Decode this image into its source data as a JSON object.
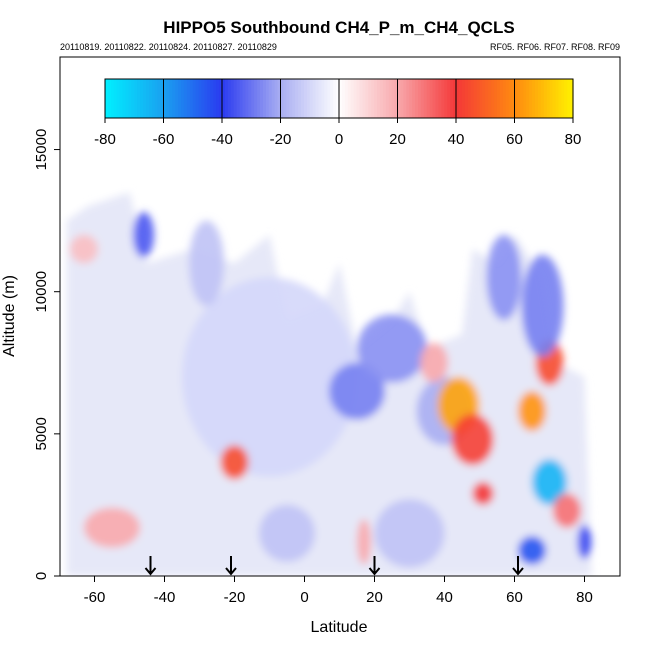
{
  "chart_data": {
    "type": "heatmap",
    "title": "HIPPO5 Southbound CH4_P_m_CH4_QCLS",
    "subtitle_left": "20110819. 20110822. 20110824. 20110827. 20110829",
    "subtitle_right": "RF05. RF06. RF07. RF08. RF09",
    "xlabel": "Latitude",
    "ylabel": "Altitude (m)",
    "xlim": [
      -70,
      90
    ],
    "ylim": [
      0,
      17500
    ],
    "x_ticks": [
      -60,
      -40,
      -20,
      0,
      20,
      40,
      60,
      80
    ],
    "y_ticks": [
      0,
      5000,
      10000,
      15000
    ],
    "colorbar": {
      "range": [
        -80,
        80
      ],
      "ticks": [
        -80,
        -60,
        -40,
        -20,
        0,
        20,
        40,
        60,
        80
      ],
      "stops": [
        {
          "value": -80,
          "color": "#00f0ff"
        },
        {
          "value": -60,
          "color": "#1aa0f0"
        },
        {
          "value": -40,
          "color": "#2a3af0"
        },
        {
          "value": -20,
          "color": "#a9aef2"
        },
        {
          "value": 0,
          "color": "#ffffff"
        },
        {
          "value": 20,
          "color": "#f8a8ac"
        },
        {
          "value": 40,
          "color": "#f43838"
        },
        {
          "value": 60,
          "color": "#ff8a10"
        },
        {
          "value": 80,
          "color": "#fff200"
        }
      ]
    },
    "flight_markers_latitude": [
      -44,
      -21,
      20,
      61
    ],
    "features": [
      {
        "lat": -10,
        "alt": 7000,
        "value": -10,
        "dlat": 25,
        "dalt": 3500
      },
      {
        "lat": -20,
        "alt": 4000,
        "value": 45,
        "dlat": 4,
        "dalt": 600
      },
      {
        "lat": -55,
        "alt": 1700,
        "value": 20,
        "dlat": 8,
        "dalt": 700
      },
      {
        "lat": -63,
        "alt": 11500,
        "value": 15,
        "dlat": 4,
        "dalt": 500
      },
      {
        "lat": -46,
        "alt": 12000,
        "value": -35,
        "dlat": 3,
        "dalt": 800
      },
      {
        "lat": -28,
        "alt": 11000,
        "value": -15,
        "dlat": 5,
        "dalt": 1500
      },
      {
        "lat": 15,
        "alt": 6500,
        "value": -28,
        "dlat": 8,
        "dalt": 1000
      },
      {
        "lat": 25,
        "alt": 8000,
        "value": -25,
        "dlat": 10,
        "dalt": 1200
      },
      {
        "lat": 40,
        "alt": 5800,
        "value": -20,
        "dlat": 8,
        "dalt": 1200
      },
      {
        "lat": 44,
        "alt": 6000,
        "value": 65,
        "dlat": 6,
        "dalt": 1000
      },
      {
        "lat": 48,
        "alt": 4800,
        "value": 42,
        "dlat": 6,
        "dalt": 900
      },
      {
        "lat": 51,
        "alt": 2900,
        "value": 40,
        "dlat": 3,
        "dalt": 400
      },
      {
        "lat": 65,
        "alt": 5800,
        "value": 62,
        "dlat": 4,
        "dalt": 700
      },
      {
        "lat": 70,
        "alt": 7500,
        "value": 45,
        "dlat": 4,
        "dalt": 800
      },
      {
        "lat": 70,
        "alt": 3300,
        "value": -65,
        "dlat": 5,
        "dalt": 800
      },
      {
        "lat": 65,
        "alt": 900,
        "value": -45,
        "dlat": 4,
        "dalt": 500
      },
      {
        "lat": 75,
        "alt": 2300,
        "value": 30,
        "dlat": 4,
        "dalt": 600
      },
      {
        "lat": 68,
        "alt": 9500,
        "value": -28,
        "dlat": 6,
        "dalt": 1800
      },
      {
        "lat": 57,
        "alt": 10500,
        "value": -25,
        "dlat": 5,
        "dalt": 1500
      },
      {
        "lat": 80,
        "alt": 1200,
        "value": -38,
        "dlat": 2,
        "dalt": 600
      },
      {
        "lat": 30,
        "alt": 1500,
        "value": -15,
        "dlat": 10,
        "dalt": 1200
      },
      {
        "lat": 17,
        "alt": 1200,
        "value": 20,
        "dlat": 2,
        "dalt": 800
      },
      {
        "lat": -5,
        "alt": 1500,
        "value": -15,
        "dlat": 8,
        "dalt": 1000
      },
      {
        "lat": 37,
        "alt": 7500,
        "value": 20,
        "dlat": 4,
        "dalt": 700
      }
    ]
  }
}
